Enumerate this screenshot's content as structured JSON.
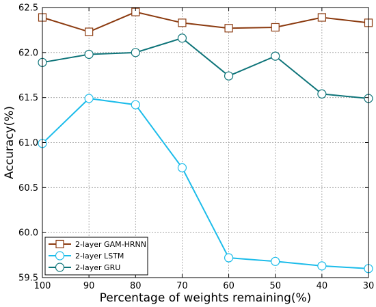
{
  "chart_data": {
    "type": "line",
    "xlabel": "Percentage of weights remaining(%)",
    "ylabel": "Accuracy(%)",
    "x": [
      100,
      90,
      80,
      70,
      60,
      50,
      40,
      30
    ],
    "xlim": [
      100,
      30
    ],
    "ylim": [
      59.5,
      62.5
    ],
    "xticks": [
      "100",
      "90",
      "80",
      "70",
      "60",
      "50",
      "40",
      "30"
    ],
    "yticks": [
      "59.5",
      "60.0",
      "60.5",
      "61.0",
      "61.5",
      "62.0",
      "62.5"
    ],
    "grid": true,
    "legend_position": "bottom-left",
    "series": [
      {
        "name": "2-layer GAM-HRNN",
        "color": "#8b3a0f",
        "marker": "square",
        "values": [
          62.39,
          62.23,
          62.45,
          62.33,
          62.27,
          62.28,
          62.39,
          62.33
        ]
      },
      {
        "name": "2-layer LSTM",
        "color": "#1cbcea",
        "marker": "circle",
        "values": [
          60.99,
          61.49,
          61.42,
          60.72,
          59.72,
          59.68,
          59.63,
          59.6
        ]
      },
      {
        "name": "2-layer GRU",
        "color": "#0e7479",
        "marker": "circle",
        "values": [
          61.89,
          61.98,
          62.0,
          62.16,
          61.74,
          61.96,
          61.54,
          61.49
        ]
      }
    ]
  }
}
